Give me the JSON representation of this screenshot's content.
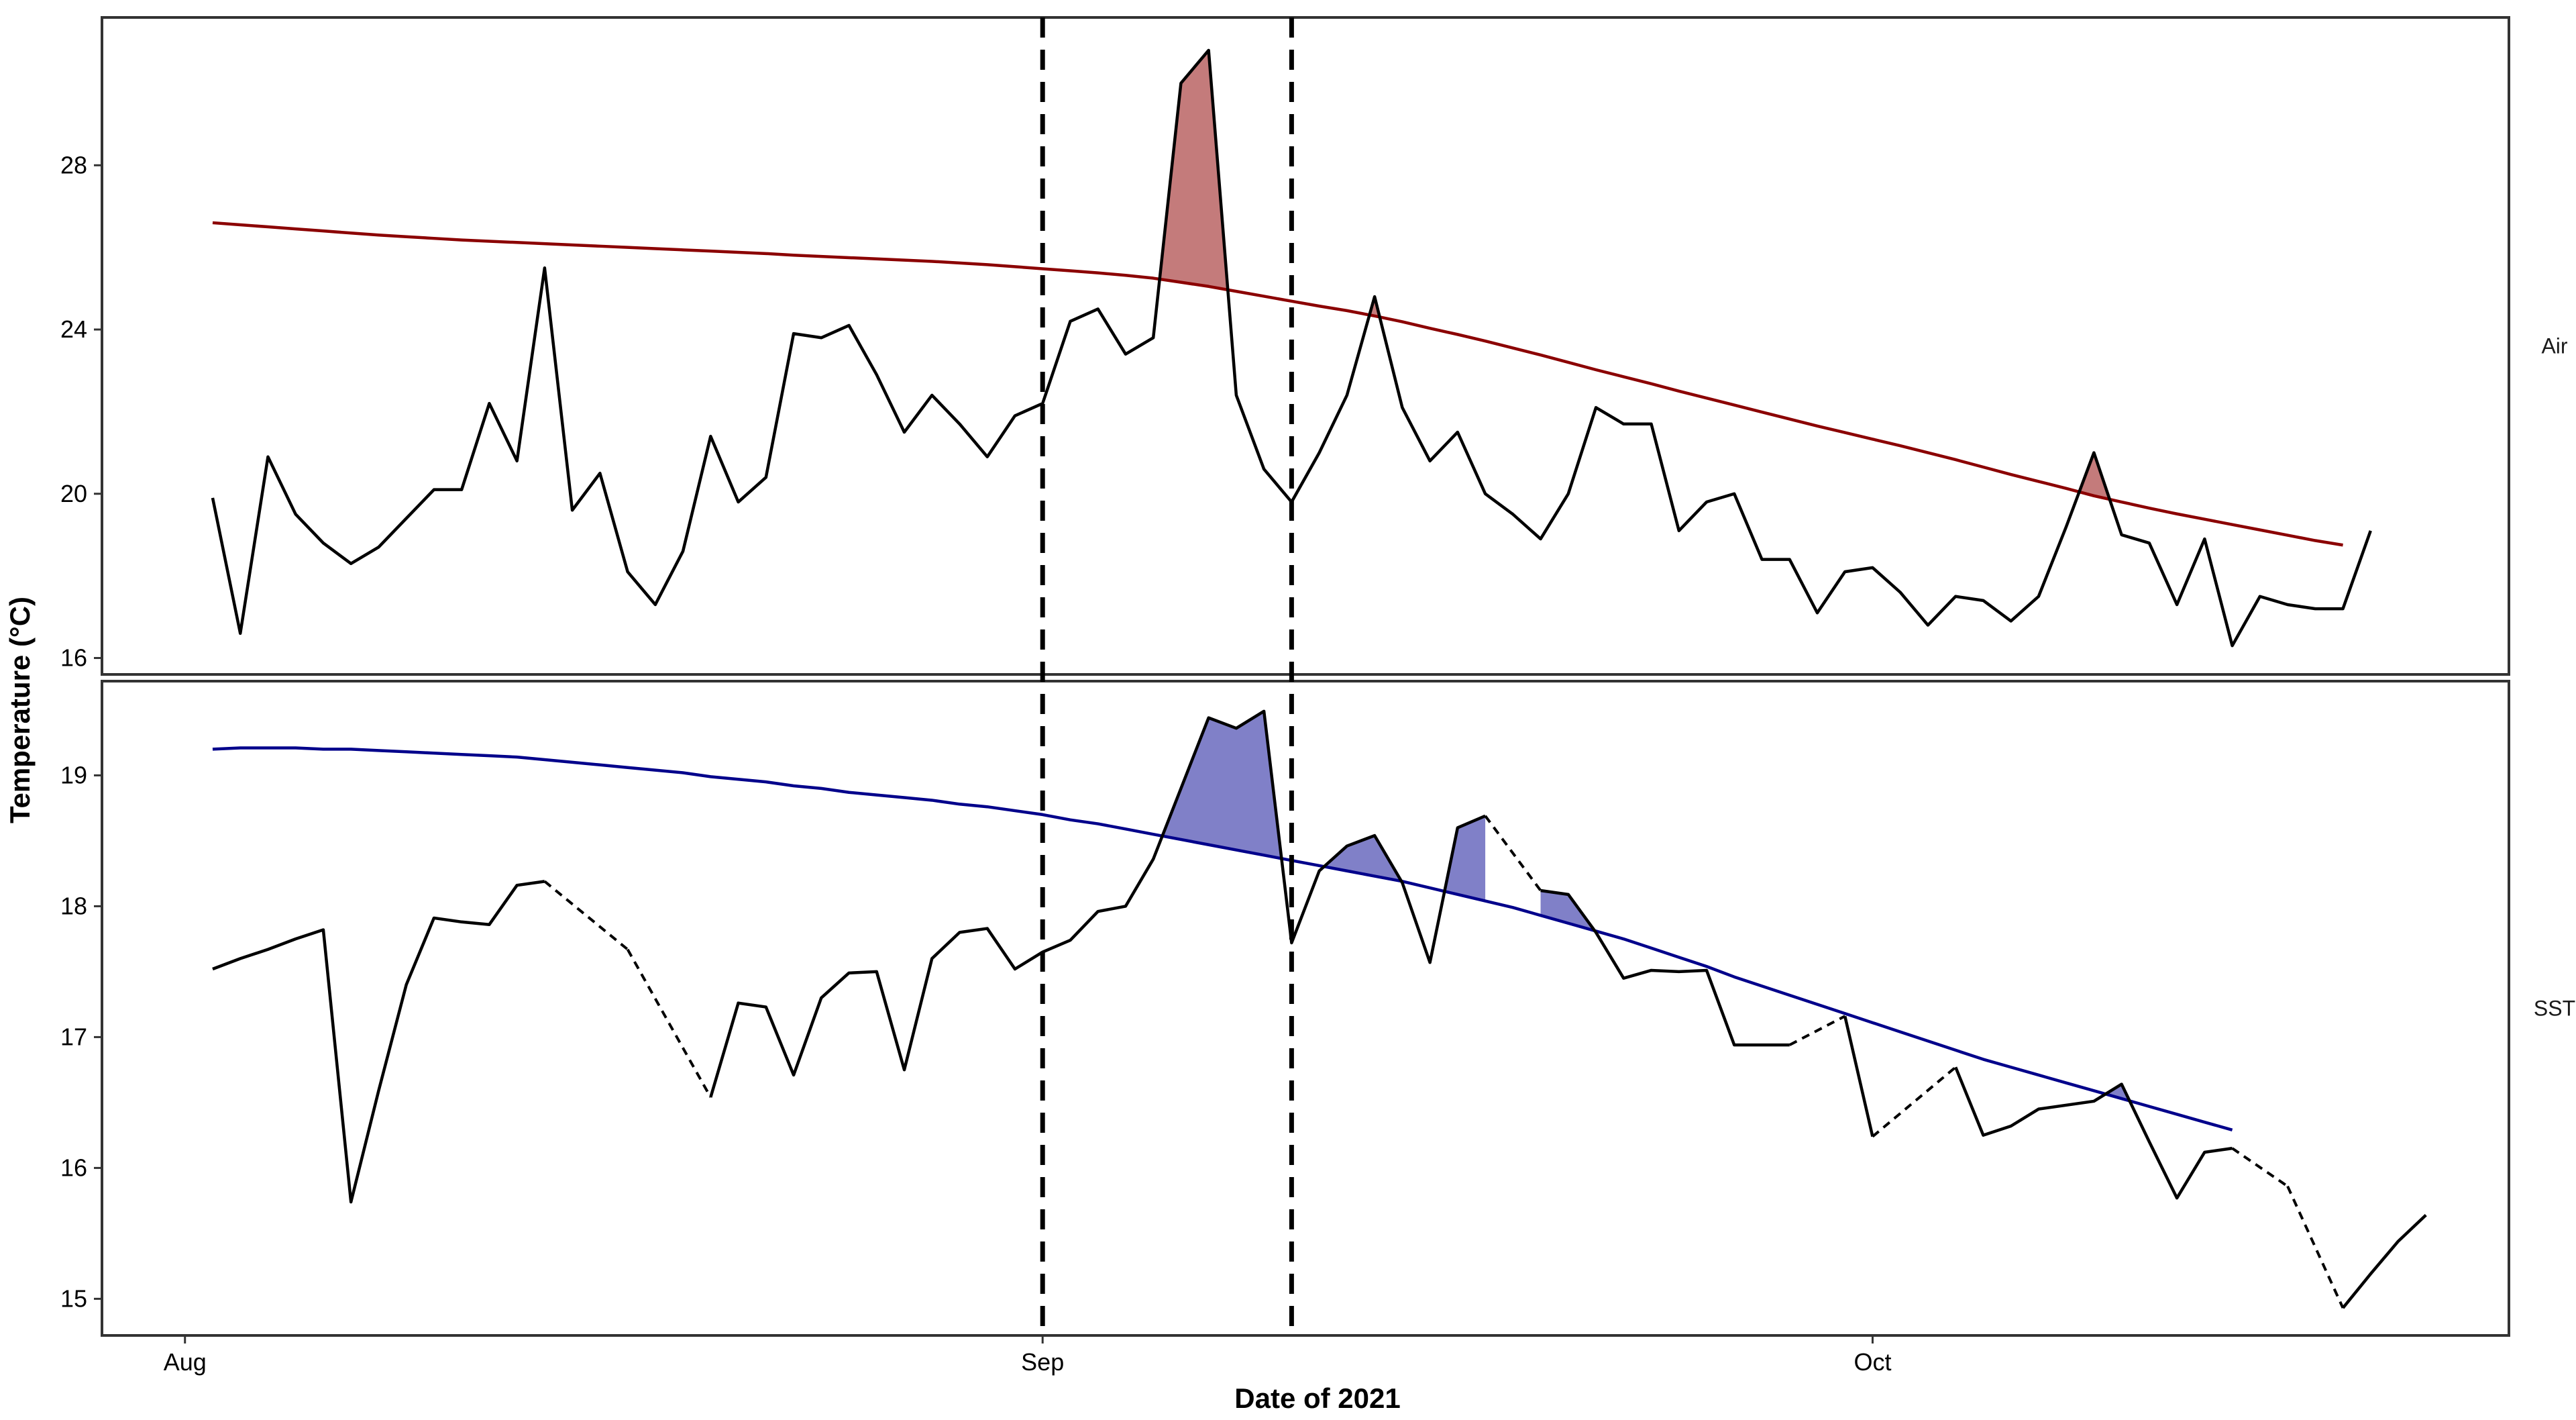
{
  "chart_data": {
    "type": "line",
    "xlabel": "Date of 2021",
    "ylabel": "Temperature (°C)",
    "x_ticks": [
      {
        "label": "Aug",
        "date": "2021-08-01"
      },
      {
        "label": "Sep",
        "date": "2021-09-01"
      },
      {
        "label": "Oct",
        "date": "2021-10-01"
      }
    ],
    "xlim": [
      "2021-07-29",
      "2021-10-24"
    ],
    "event_lines": [
      "2021-09-01",
      "2021-09-10"
    ],
    "grid": false,
    "colors": {
      "observed": "#000000",
      "air_threshold": "#8b0000",
      "air_fill": "#c47b7b",
      "sst_threshold": "#00008b",
      "sst_fill": "#8080c8"
    },
    "panels": [
      {
        "label": "Air",
        "ylim": [
          15.6,
          31.6
        ],
        "y_ticks": [
          16,
          20,
          24,
          28
        ],
        "start_date": "2021-08-02",
        "series": [
          {
            "values": [
              19.9,
              16.6,
              20.9,
              19.5,
              18.8,
              18.3,
              18.7,
              19.4,
              20.1,
              20.1,
              22.2,
              20.8,
              25.5,
              19.6,
              20.5,
              18.1,
              17.3,
              18.6,
              21.4,
              19.8,
              20.4,
              23.9,
              23.8,
              24.1,
              22.9,
              21.5,
              22.4,
              21.7,
              20.9,
              21.9,
              22.2,
              24.2,
              24.5,
              23.4,
              23.8,
              30.0,
              30.8,
              22.4,
              20.6,
              19.8,
              21.0,
              22.4,
              24.8,
              22.1,
              20.8,
              21.5,
              20.0,
              19.5,
              18.9,
              20.0,
              22.1,
              21.7,
              21.7,
              19.1,
              19.8,
              20.0,
              18.4,
              18.4,
              17.1,
              18.1,
              18.2,
              17.6,
              16.8,
              17.5,
              17.4,
              16.9,
              17.5,
              19.2,
              21.0,
              19.0,
              18.8,
              17.3,
              18.9,
              16.3,
              17.5,
              17.3,
              17.2,
              17.2,
              19.1
            ]
          },
          {
            "values": [
              26.6,
              26.55,
              26.5,
              26.45,
              26.4,
              26.35,
              26.3,
              26.26,
              26.22,
              26.18,
              26.15,
              26.12,
              26.09,
              26.06,
              26.03,
              26.0,
              25.97,
              25.94,
              25.91,
              25.88,
              25.85,
              25.81,
              25.78,
              25.75,
              25.72,
              25.69,
              25.66,
              25.62,
              25.58,
              25.53,
              25.48,
              25.43,
              25.38,
              25.32,
              25.25,
              25.15,
              25.05,
              24.93,
              24.81,
              24.69,
              24.57,
              24.46,
              24.33,
              24.19,
              24.03,
              23.88,
              23.72,
              23.55,
              23.38,
              23.2,
              23.02,
              22.85,
              22.68,
              22.5,
              22.33,
              22.16,
              21.99,
              21.82,
              21.65,
              21.49,
              21.33,
              21.17,
              21.0,
              20.83,
              20.65,
              20.47,
              20.3,
              20.13,
              19.95,
              19.8,
              19.65,
              19.51,
              19.38,
              19.25,
              19.12,
              18.99,
              18.86,
              18.75
            ]
          }
        ]
      },
      {
        "label": "SST",
        "ylim": [
          14.72,
          19.72
        ],
        "y_ticks": [
          15,
          16,
          17,
          18,
          19
        ],
        "start_date": "2021-08-02",
        "series": [
          {
            "values": [
              17.52,
              17.6,
              17.67,
              17.75,
              17.82,
              15.74,
              16.59,
              17.4,
              17.91,
              17.88,
              17.86,
              18.16,
              18.19,
              null,
              null,
              17.67,
              null,
              null,
              16.54,
              17.26,
              17.23,
              16.71,
              17.3,
              17.49,
              17.5,
              16.75,
              17.6,
              17.8,
              17.83,
              17.52,
              17.65,
              17.74,
              17.96,
              18.0,
              18.36,
              18.9,
              19.44,
              19.36,
              19.49,
              17.72,
              18.27,
              18.46,
              18.54,
              18.18,
              17.57,
              18.6,
              18.69,
              null,
              18.12,
              18.09,
              17.8,
              17.45,
              17.51,
              17.5,
              17.51,
              16.94,
              16.94,
              16.94,
              null,
              17.16,
              16.24,
              null,
              null,
              16.77,
              16.25,
              16.32,
              16.45,
              16.48,
              16.51,
              16.64,
              16.2,
              15.77,
              16.12,
              16.15,
              null,
              15.86,
              null,
              14.93,
              15.19,
              15.44,
              15.64
            ]
          },
          {
            "values": [
              19.2,
              19.21,
              19.21,
              19.21,
              19.2,
              19.2,
              19.19,
              19.18,
              19.17,
              19.16,
              19.15,
              19.14,
              19.12,
              19.1,
              19.08,
              19.06,
              19.04,
              19.02,
              18.99,
              18.97,
              18.95,
              18.92,
              18.9,
              18.87,
              18.85,
              18.83,
              18.81,
              18.78,
              18.76,
              18.73,
              18.7,
              18.66,
              18.63,
              18.59,
              18.55,
              18.51,
              18.47,
              18.43,
              18.39,
              18.35,
              18.31,
              18.27,
              18.23,
              18.19,
              18.14,
              18.09,
              18.04,
              17.99,
              17.93,
              17.87,
              17.81,
              17.75,
              17.68,
              17.61,
              17.54,
              17.46,
              17.39,
              17.32,
              17.25,
              17.18,
              17.11,
              17.04,
              16.97,
              16.9,
              16.83,
              16.77,
              16.71,
              16.65,
              16.59,
              16.53,
              16.47,
              16.41,
              16.35,
              16.29
            ]
          }
        ]
      }
    ]
  }
}
